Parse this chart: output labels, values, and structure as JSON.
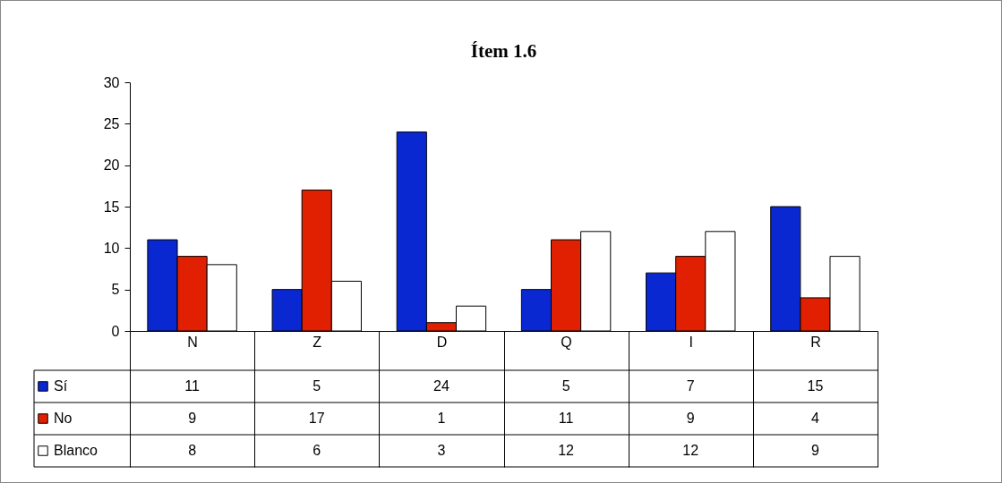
{
  "chart_data": {
    "type": "bar",
    "title": "Ítem 1.6",
    "categories": [
      "N",
      "Z",
      "D",
      "Q",
      "I",
      "R"
    ],
    "series": [
      {
        "name": "Sí",
        "color": "#0a28d2",
        "values": [
          11,
          5,
          24,
          5,
          7,
          15
        ]
      },
      {
        "name": "No",
        "color": "#e02000",
        "values": [
          9,
          17,
          1,
          11,
          9,
          4
        ]
      },
      {
        "name": "Blanco",
        "color": "#ffffff",
        "values": [
          8,
          6,
          3,
          12,
          12,
          9
        ]
      }
    ],
    "ylim": [
      0,
      30
    ],
    "yticks": [
      0,
      5,
      10,
      15,
      20,
      25,
      30
    ],
    "data_labels": true,
    "legend": "bottom left"
  }
}
